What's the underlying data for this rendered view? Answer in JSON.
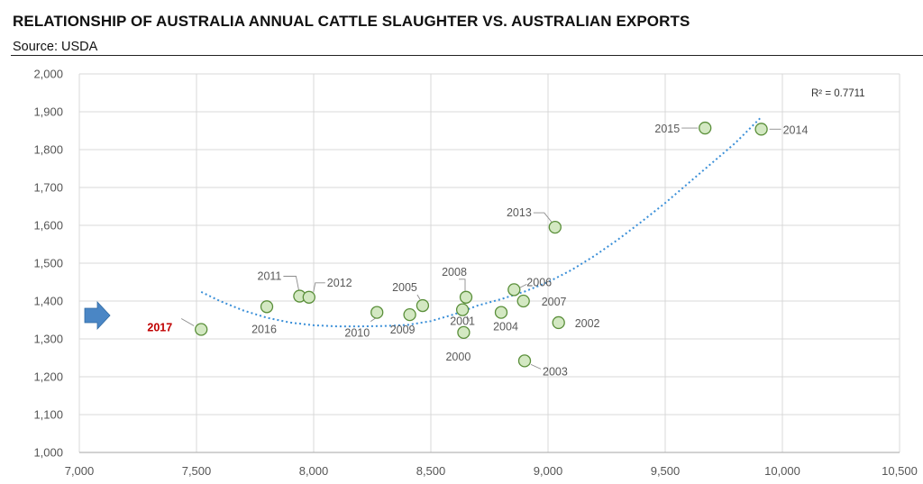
{
  "header": {
    "title": "RELATIONSHIP OF AUSTRALIA ANNUAL CATTLE SLAUGHTER VS. AUSTRALIAN EXPORTS",
    "source": "Source:  USDA"
  },
  "chart_data": {
    "type": "scatter",
    "xlim": [
      7000,
      10500
    ],
    "ylim": [
      1000,
      2000
    ],
    "xticks": [
      7000,
      7500,
      8000,
      8500,
      9000,
      9500,
      10000,
      10500
    ],
    "yticks": [
      1000,
      1100,
      1200,
      1300,
      1400,
      1500,
      1600,
      1700,
      1800,
      1900,
      2000
    ],
    "xtick_labels": [
      "7,000",
      "7,500",
      "8,000",
      "8,500",
      "9,000",
      "9,500",
      "10,000",
      "10,500"
    ],
    "ytick_labels": [
      "1,000",
      "1,100",
      "1,200",
      "1,300",
      "1,400",
      "1,500",
      "1,600",
      "1,700",
      "1,800",
      "1,900",
      "2,000"
    ],
    "grid": true,
    "r_squared_label": "R² = 0.7711",
    "marker_color": "#d3e8c2",
    "marker_edge": "#5a8f3a",
    "trendline_color": "#3a8fd8",
    "highlight_color": "#c00000",
    "arrow_color": "#4a86c5",
    "trendline": {
      "type": "polynomial",
      "x": [
        7520,
        7600,
        7700,
        7800,
        7900,
        8000,
        8100,
        8200,
        8300,
        8400,
        8500,
        8600,
        8700,
        8800,
        8900,
        9000,
        9100,
        9200,
        9300,
        9400,
        9500,
        9600,
        9700,
        9800,
        9910
      ],
      "y": [
        1424,
        1400,
        1375,
        1356,
        1343,
        1336,
        1333,
        1333,
        1334,
        1337,
        1347,
        1365,
        1388,
        1405,
        1425,
        1450,
        1482,
        1520,
        1563,
        1610,
        1659,
        1712,
        1765,
        1818,
        1886
      ]
    },
    "points": [
      {
        "label": "2017",
        "x": 7520,
        "y": 1325,
        "highlight": true
      },
      {
        "label": "2016",
        "x": 7800,
        "y": 1385
      },
      {
        "label": "2011",
        "x": 7940,
        "y": 1413
      },
      {
        "label": "2012",
        "x": 7980,
        "y": 1410
      },
      {
        "label": "2010",
        "x": 8270,
        "y": 1370
      },
      {
        "label": "2009",
        "x": 8410,
        "y": 1364
      },
      {
        "label": "2005",
        "x": 8465,
        "y": 1388
      },
      {
        "label": "2008",
        "x": 8650,
        "y": 1410
      },
      {
        "label": "2001",
        "x": 8635,
        "y": 1377
      },
      {
        "label": "2000",
        "x": 8640,
        "y": 1317
      },
      {
        "label": "2004",
        "x": 8800,
        "y": 1370
      },
      {
        "label": "2006",
        "x": 8855,
        "y": 1430
      },
      {
        "label": "2007",
        "x": 8895,
        "y": 1400
      },
      {
        "label": "2003",
        "x": 8900,
        "y": 1242
      },
      {
        "label": "2002",
        "x": 9045,
        "y": 1343
      },
      {
        "label": "2013",
        "x": 9030,
        "y": 1595
      },
      {
        "label": "2015",
        "x": 9670,
        "y": 1857
      },
      {
        "label": "2014",
        "x": 9910,
        "y": 1854
      }
    ]
  }
}
